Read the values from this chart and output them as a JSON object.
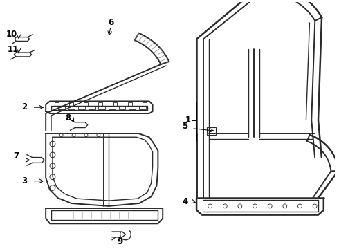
{
  "bg_color": "#ffffff",
  "line_color": "#2a2a2a",
  "figsize": [
    4.9,
    3.6
  ],
  "dpi": 100,
  "label_fontsize": 8.5
}
